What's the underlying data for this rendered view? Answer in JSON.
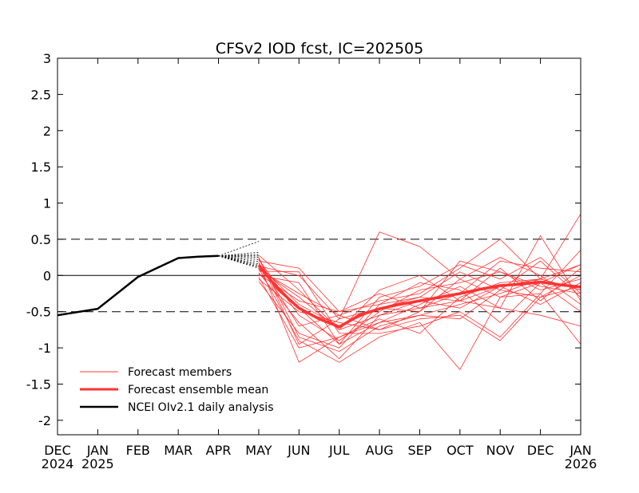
{
  "chart_data": {
    "type": "line",
    "title": "CFSv2 IOD fcst, IC=202505",
    "xlabel": "",
    "ylabel": "",
    "ylim": [
      -2.2,
      3
    ],
    "yticks": [
      3,
      2.5,
      2,
      1.5,
      1,
      0.5,
      0,
      -0.5,
      -1,
      -1.5,
      -2
    ],
    "ytick_labels": [
      "3",
      "2.5",
      "2",
      "1.5",
      "1",
      "0.5",
      "0",
      "-0.5",
      "-1",
      "-1.5",
      "-2"
    ],
    "x_months": [
      "DEC 2024",
      "JAN 2025",
      "FEB",
      "MAR",
      "APR",
      "MAY",
      "JUN",
      "JUL",
      "AUG",
      "SEP",
      "OCT",
      "NOV",
      "DEC",
      "JAN 2026"
    ],
    "x_tick_labels": [
      {
        "month": "DEC",
        "year": "2024"
      },
      {
        "month": "JAN",
        "year": "2025"
      },
      {
        "month": "FEB",
        "year": ""
      },
      {
        "month": "MAR",
        "year": ""
      },
      {
        "month": "APR",
        "year": ""
      },
      {
        "month": "MAY",
        "year": ""
      },
      {
        "month": "JUN",
        "year": ""
      },
      {
        "month": "JUL",
        "year": ""
      },
      {
        "month": "AUG",
        "year": ""
      },
      {
        "month": "SEP",
        "year": ""
      },
      {
        "month": "OCT",
        "year": ""
      },
      {
        "month": "NOV",
        "year": ""
      },
      {
        "month": "DEC",
        "year": ""
      },
      {
        "month": "JAN",
        "year": "2026"
      }
    ],
    "reference_lines": [
      {
        "y": 0.5,
        "style": "dashed"
      },
      {
        "y": 0,
        "style": "solid"
      },
      {
        "y": -0.5,
        "style": "dashed"
      }
    ],
    "legend": {
      "placement": "bottom-left",
      "entries": [
        "Forecast members",
        "Forecast ensemble mean",
        "NCEI OIv2.1 daily analysis"
      ]
    },
    "series": [
      {
        "name": "NCEI OIv2.1 daily analysis",
        "color": "#000000",
        "x": [
          0,
          1,
          2,
          3,
          3.5,
          4
        ],
        "y": [
          -0.55,
          -0.46,
          -0.02,
          0.24,
          0.26,
          0.27
        ]
      },
      {
        "name": "Forecast ensemble mean",
        "color": "#ff3333",
        "x": [
          5,
          5.5,
          6,
          6.5,
          7,
          7.5,
          8,
          8.5,
          9,
          9.5,
          10,
          10.5,
          11,
          11.5,
          12,
          12.5,
          13
        ],
        "y": [
          0.14,
          -0.2,
          -0.45,
          -0.6,
          -0.71,
          -0.55,
          -0.46,
          -0.4,
          -0.35,
          -0.3,
          -0.25,
          -0.19,
          -0.14,
          -0.12,
          -0.09,
          -0.13,
          -0.16
        ]
      }
    ],
    "daily_spread": {
      "color": "#000000",
      "x_start": 4,
      "x_end": 5,
      "y_start": 0.27,
      "y_end_values": [
        0.47,
        0.32,
        0.29,
        0.27,
        0.25,
        0.22,
        0.19,
        0.16,
        0.14,
        0.12,
        0.1
      ]
    },
    "forecast_members": {
      "name": "Forecast members",
      "color": "#ff3333",
      "x": [
        5,
        6,
        7,
        8,
        9,
        10,
        11,
        12,
        13
      ],
      "members": [
        [
          0.28,
          -0.2,
          -0.75,
          -0.55,
          -0.45,
          -0.35,
          -0.15,
          -0.05,
          -0.2
        ],
        [
          0.25,
          -0.85,
          -1.05,
          -0.7,
          -0.55,
          -0.4,
          -0.25,
          -0.05,
          0.15
        ],
        [
          0.22,
          -0.55,
          -0.9,
          -0.5,
          -0.2,
          -0.1,
          0.05,
          -0.2,
          -0.05
        ],
        [
          0.2,
          0.1,
          -0.5,
          -0.4,
          -0.3,
          -0.35,
          -0.45,
          0.55,
          -0.35
        ],
        [
          0.18,
          -1.2,
          -0.85,
          -0.65,
          -0.55,
          -0.6,
          -0.2,
          -0.3,
          0.0
        ],
        [
          0.15,
          -0.4,
          -0.7,
          -0.45,
          -0.5,
          0.2,
          0.05,
          -0.15,
          -0.25
        ],
        [
          0.13,
          0.0,
          -0.6,
          0.6,
          0.4,
          -0.05,
          0.25,
          0.0,
          -0.4
        ],
        [
          0.1,
          -0.9,
          -1.2,
          -0.85,
          -0.65,
          -1.3,
          -0.3,
          -0.1,
          0.15
        ],
        [
          0.08,
          -0.25,
          -0.55,
          -0.35,
          -0.25,
          0.1,
          0.5,
          -0.05,
          0.85
        ],
        [
          0.06,
          0.05,
          -0.8,
          -0.8,
          -0.7,
          -0.5,
          -0.85,
          -0.25,
          -0.95
        ],
        [
          0.04,
          -0.65,
          -1.15,
          -0.55,
          -0.35,
          -0.45,
          -0.15,
          -0.4,
          -0.1
        ],
        [
          0.02,
          -0.35,
          -0.5,
          -0.25,
          -0.45,
          -0.25,
          0.2,
          0.1,
          0.05
        ],
        [
          0.0,
          -0.1,
          -0.95,
          -0.65,
          -0.4,
          -0.15,
          -0.45,
          -0.55,
          -0.7
        ],
        [
          -0.02,
          -1.0,
          -0.85,
          -0.6,
          -0.8,
          -0.3,
          -0.1,
          -0.05,
          -0.2
        ],
        [
          -0.05,
          -0.5,
          -0.65,
          -0.75,
          -0.5,
          -0.05,
          -0.3,
          -0.25,
          0.35
        ],
        [
          -0.08,
          -0.8,
          -1.0,
          -0.4,
          -0.1,
          -0.2,
          -0.65,
          -0.1,
          -0.5
        ],
        [
          0.12,
          -0.45,
          -0.95,
          -0.3,
          -0.15,
          0.15,
          -0.05,
          0.25,
          -0.25
        ],
        [
          0.18,
          -0.7,
          -0.55,
          -0.75,
          -0.6,
          -0.55,
          -0.9,
          -0.3,
          -0.15
        ],
        [
          0.09,
          -0.3,
          -0.75,
          -0.2,
          0.0,
          -0.35,
          0.1,
          -0.35,
          0.1
        ],
        [
          0.24,
          -0.95,
          -0.6,
          -0.45,
          -0.3,
          0.05,
          -0.2,
          0.2,
          -0.3
        ]
      ]
    }
  }
}
